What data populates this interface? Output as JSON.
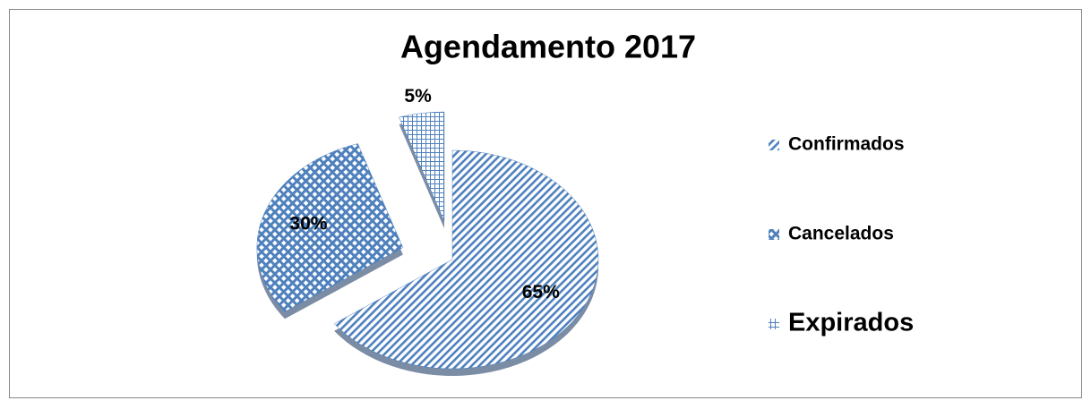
{
  "chart_data": {
    "type": "pie",
    "title": "Agendamento 2017",
    "categories": [
      "Confirmados",
      "Cancelados",
      "Expirados"
    ],
    "values": [
      65,
      30,
      5
    ],
    "value_labels": [
      "65%",
      "30%",
      "5%"
    ],
    "colors": [
      "#4f81bd",
      "#4f81bd",
      "#4f81bd"
    ],
    "legend": "right"
  }
}
